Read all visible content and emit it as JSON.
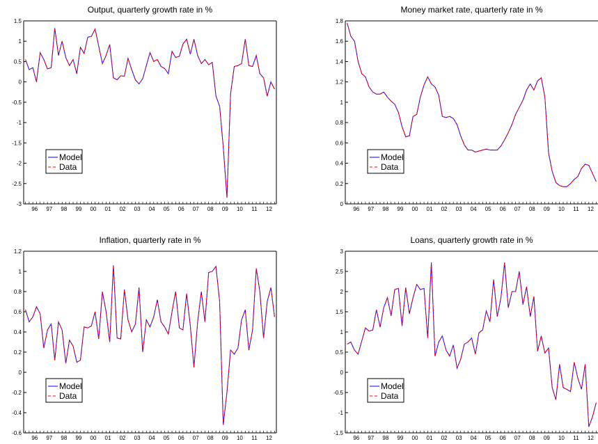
{
  "chart_data": [
    {
      "type": "line",
      "title": "Output, quarterly growth rate in %",
      "xlabel": "",
      "ylabel": "",
      "x_start": "1995Q4",
      "x_ticks": [
        "96",
        "97",
        "98",
        "99",
        "00",
        "01",
        "02",
        "03",
        "04",
        "05",
        "06",
        "07",
        "08",
        "09",
        "10",
        "11",
        "12"
      ],
      "ylim": [
        -3,
        1.5
      ],
      "y_ticks": [
        "-3",
        "-2.5",
        "-2",
        "-1.5",
        "-1",
        "-0.5",
        "0",
        "0.5",
        "1",
        "1.5"
      ],
      "grid": false,
      "legend": "lower-left",
      "series": [
        {
          "name": "Model",
          "color": "#0000ff",
          "values": [
            0.55,
            0.3,
            0.35,
            0.0,
            0.72,
            0.55,
            0.32,
            0.35,
            1.32,
            0.65,
            1.0,
            0.6,
            0.4,
            0.55,
            0.2,
            0.85,
            0.7,
            1.1,
            1.12,
            1.3,
            0.88,
            0.45,
            0.65,
            0.92,
            0.1,
            0.05,
            0.15,
            0.14,
            0.58,
            0.3,
            0.05,
            -0.05,
            0.08,
            0.4,
            0.72,
            0.5,
            0.55,
            0.38,
            0.33,
            0.2,
            0.75,
            0.6,
            0.63,
            0.93,
            1.05,
            0.68,
            1.05,
            0.65,
            0.45,
            0.55,
            0.42,
            0.48,
            -0.35,
            -0.6,
            -1.6,
            -2.85,
            -0.3,
            0.38,
            0.4,
            0.45,
            1.05,
            0.4,
            0.38,
            0.65,
            0.2,
            0.1,
            -0.35,
            0.0,
            -0.18
          ]
        },
        {
          "name": "Data",
          "color": "#ff0000",
          "values": [
            0.55,
            0.3,
            0.35,
            0.0,
            0.72,
            0.55,
            0.32,
            0.35,
            1.32,
            0.65,
            1.0,
            0.6,
            0.4,
            0.55,
            0.2,
            0.85,
            0.7,
            1.1,
            1.12,
            1.3,
            0.88,
            0.45,
            0.65,
            0.92,
            0.1,
            0.05,
            0.15,
            0.14,
            0.58,
            0.3,
            0.05,
            -0.05,
            0.08,
            0.4,
            0.72,
            0.5,
            0.55,
            0.38,
            0.33,
            0.2,
            0.75,
            0.6,
            0.63,
            0.93,
            1.05,
            0.68,
            1.05,
            0.65,
            0.45,
            0.55,
            0.42,
            0.48,
            -0.35,
            -0.6,
            -1.6,
            -2.85,
            -0.3,
            0.38,
            0.4,
            0.45,
            1.05,
            0.4,
            0.38,
            0.65,
            0.2,
            0.1,
            -0.35,
            0.0,
            -0.18
          ]
        }
      ]
    },
    {
      "type": "line",
      "title": "Money market rate, quarterly rate in %",
      "xlabel": "",
      "ylabel": "",
      "x_start": "1995Q4",
      "x_ticks": [
        "96",
        "97",
        "98",
        "99",
        "00",
        "01",
        "02",
        "03",
        "04",
        "05",
        "06",
        "07",
        "08",
        "09",
        "10",
        "11",
        "12"
      ],
      "ylim": [
        0,
        1.8
      ],
      "y_ticks": [
        "0",
        "0.2",
        "0.4",
        "0.6",
        "0.8",
        "1",
        "1.2",
        "1.4",
        "1.6",
        "1.8"
      ],
      "grid": false,
      "legend": "lower-left",
      "series": [
        {
          "name": "Model",
          "color": "#0000ff",
          "values": [
            1.78,
            1.65,
            1.6,
            1.4,
            1.28,
            1.25,
            1.15,
            1.1,
            1.08,
            1.08,
            1.1,
            1.05,
            1.01,
            0.98,
            0.9,
            0.76,
            0.66,
            0.67,
            0.86,
            0.88,
            1.05,
            1.17,
            1.25,
            1.18,
            1.15,
            1.07,
            0.86,
            0.85,
            0.86,
            0.84,
            0.78,
            0.67,
            0.58,
            0.53,
            0.53,
            0.51,
            0.52,
            0.53,
            0.54,
            0.53,
            0.53,
            0.53,
            0.57,
            0.63,
            0.7,
            0.78,
            0.88,
            0.95,
            1.02,
            1.12,
            1.18,
            1.12,
            1.21,
            1.24,
            1.05,
            0.5,
            0.32,
            0.21,
            0.18,
            0.17,
            0.17,
            0.2,
            0.24,
            0.27,
            0.35,
            0.39,
            0.38,
            0.3,
            0.22
          ]
        },
        {
          "name": "Data",
          "color": "#ff0000",
          "values": [
            1.78,
            1.65,
            1.6,
            1.4,
            1.28,
            1.25,
            1.15,
            1.1,
            1.08,
            1.08,
            1.1,
            1.05,
            1.01,
            0.98,
            0.9,
            0.76,
            0.66,
            0.67,
            0.86,
            0.88,
            1.05,
            1.17,
            1.25,
            1.18,
            1.15,
            1.07,
            0.86,
            0.85,
            0.86,
            0.84,
            0.78,
            0.67,
            0.58,
            0.53,
            0.53,
            0.51,
            0.52,
            0.53,
            0.54,
            0.53,
            0.53,
            0.53,
            0.57,
            0.63,
            0.7,
            0.78,
            0.88,
            0.95,
            1.02,
            1.12,
            1.18,
            1.12,
            1.21,
            1.24,
            1.05,
            0.5,
            0.32,
            0.21,
            0.18,
            0.17,
            0.17,
            0.2,
            0.24,
            0.27,
            0.35,
            0.39,
            0.38,
            0.3,
            0.22
          ]
        }
      ]
    },
    {
      "type": "line",
      "title": "Inflation, quarterly rate in %",
      "xlabel": "",
      "ylabel": "",
      "x_start": "1995Q4",
      "x_ticks": [
        "96",
        "97",
        "98",
        "99",
        "00",
        "01",
        "02",
        "03",
        "04",
        "05",
        "06",
        "07",
        "08",
        "09",
        "10",
        "11",
        "12"
      ],
      "ylim": [
        -0.6,
        1.2
      ],
      "y_ticks": [
        "-0.6",
        "-0.4",
        "-0.2",
        "0",
        "0.2",
        "0.4",
        "0.6",
        "0.8",
        "1",
        "1.2"
      ],
      "grid": false,
      "legend": "lower-left",
      "series": [
        {
          "name": "Model",
          "color": "#0000ff",
          "values": [
            0.62,
            0.5,
            0.55,
            0.65,
            0.58,
            0.24,
            0.42,
            0.48,
            0.12,
            0.5,
            0.42,
            0.09,
            0.32,
            0.26,
            0.1,
            0.12,
            0.45,
            0.44,
            0.46,
            0.6,
            0.33,
            0.8,
            0.6,
            0.3,
            1.06,
            0.34,
            0.33,
            0.82,
            0.52,
            0.4,
            0.48,
            0.84,
            0.2,
            0.52,
            0.45,
            0.55,
            0.72,
            0.5,
            0.45,
            0.38,
            0.6,
            0.8,
            0.44,
            0.42,
            0.78,
            0.46,
            0.05,
            0.5,
            0.8,
            0.5,
            0.99,
            1.0,
            1.05,
            0.7,
            -0.52,
            -0.2,
            0.22,
            0.18,
            0.24,
            0.52,
            0.62,
            0.22,
            0.42,
            1.03,
            0.8,
            0.34,
            0.7,
            0.84,
            0.55
          ]
        },
        {
          "name": "Data",
          "color": "#ff0000",
          "values": [
            0.62,
            0.5,
            0.55,
            0.65,
            0.58,
            0.24,
            0.42,
            0.48,
            0.12,
            0.5,
            0.42,
            0.09,
            0.32,
            0.26,
            0.1,
            0.12,
            0.45,
            0.44,
            0.46,
            0.6,
            0.33,
            0.8,
            0.6,
            0.3,
            1.06,
            0.34,
            0.33,
            0.82,
            0.52,
            0.4,
            0.48,
            0.84,
            0.2,
            0.52,
            0.45,
            0.55,
            0.72,
            0.5,
            0.45,
            0.38,
            0.6,
            0.8,
            0.44,
            0.42,
            0.78,
            0.46,
            0.05,
            0.5,
            0.8,
            0.5,
            0.99,
            1.0,
            1.05,
            0.7,
            -0.52,
            -0.2,
            0.22,
            0.18,
            0.24,
            0.52,
            0.62,
            0.22,
            0.42,
            1.03,
            0.8,
            0.34,
            0.7,
            0.84,
            0.55
          ]
        }
      ]
    },
    {
      "type": "line",
      "title": "Loans, quarterly growth rate in %",
      "xlabel": "",
      "ylabel": "",
      "x_start": "1995Q4",
      "x_ticks": [
        "96",
        "97",
        "98",
        "99",
        "00",
        "01",
        "02",
        "03",
        "04",
        "05",
        "06",
        "07",
        "08",
        "09",
        "10",
        "11",
        "12"
      ],
      "ylim": [
        -1.5,
        3
      ],
      "y_ticks": [
        "-1.5",
        "-1",
        "-0.5",
        "0",
        "0.5",
        "1",
        "1.5",
        "2",
        "2.5",
        "3"
      ],
      "grid": false,
      "legend": "lower-left",
      "series": [
        {
          "name": "Model",
          "color": "#0000ff",
          "values": [
            0.7,
            0.75,
            0.55,
            0.45,
            0.78,
            1.1,
            1.02,
            1.05,
            1.55,
            1.12,
            1.6,
            1.85,
            1.4,
            2.05,
            2.08,
            1.15,
            2.1,
            1.45,
            1.85,
            2.18,
            2.05,
            2.08,
            0.85,
            2.72,
            0.4,
            0.75,
            0.9,
            0.55,
            0.4,
            0.68,
            0.1,
            0.32,
            0.7,
            0.75,
            0.85,
            0.45,
            0.98,
            1.05,
            1.52,
            1.25,
            2.3,
            1.38,
            1.85,
            2.72,
            1.6,
            2.0,
            2.0,
            2.5,
            1.68,
            2.12,
            1.38,
            1.88,
            0.52,
            0.9,
            0.48,
            0.6,
            -0.38,
            -0.68,
            0.2,
            -0.38,
            -0.42,
            -0.48,
            0.25,
            -0.15,
            -0.42,
            0.2,
            -1.35,
            -1.1,
            -0.75
          ]
        },
        {
          "name": "Data",
          "color": "#ff0000",
          "values": [
            0.7,
            0.75,
            0.55,
            0.45,
            0.78,
            1.1,
            1.02,
            1.05,
            1.55,
            1.12,
            1.6,
            1.85,
            1.4,
            2.05,
            2.08,
            1.15,
            2.1,
            1.45,
            1.85,
            2.18,
            2.05,
            2.08,
            0.85,
            2.72,
            0.4,
            0.75,
            0.9,
            0.55,
            0.4,
            0.68,
            0.1,
            0.32,
            0.7,
            0.75,
            0.85,
            0.45,
            0.98,
            1.05,
            1.52,
            1.25,
            2.3,
            1.38,
            1.85,
            2.72,
            1.6,
            2.0,
            2.0,
            2.5,
            1.68,
            2.12,
            1.38,
            1.88,
            0.52,
            0.9,
            0.48,
            0.6,
            -0.38,
            -0.68,
            0.2,
            -0.38,
            -0.42,
            -0.48,
            0.25,
            -0.15,
            -0.42,
            0.2,
            -1.35,
            -1.1,
            -0.75
          ]
        }
      ]
    }
  ]
}
